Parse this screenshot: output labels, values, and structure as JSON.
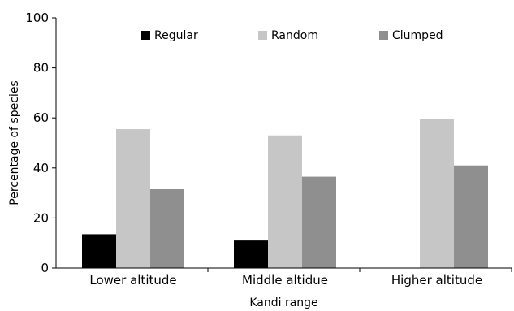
{
  "chart_data": {
    "type": "bar",
    "title": "",
    "xlabel": "Kandi range",
    "ylabel": "Percentage of species",
    "categories": [
      "Lower altitude",
      "Middle altidue",
      "Higher altitude"
    ],
    "series": [
      {
        "name": "Regular",
        "color": "#000000",
        "values": [
          13.5,
          11,
          0
        ]
      },
      {
        "name": "Random",
        "color": "#c6c6c6",
        "values": [
          55.5,
          53,
          59.5
        ]
      },
      {
        "name": "Clumped",
        "color": "#8f8f8f",
        "values": [
          31.5,
          36.5,
          41
        ]
      }
    ],
    "ylim": [
      0,
      100
    ],
    "yticks": [
      0,
      20,
      40,
      60,
      80,
      100
    ],
    "grid": false,
    "legend_position": "top"
  }
}
